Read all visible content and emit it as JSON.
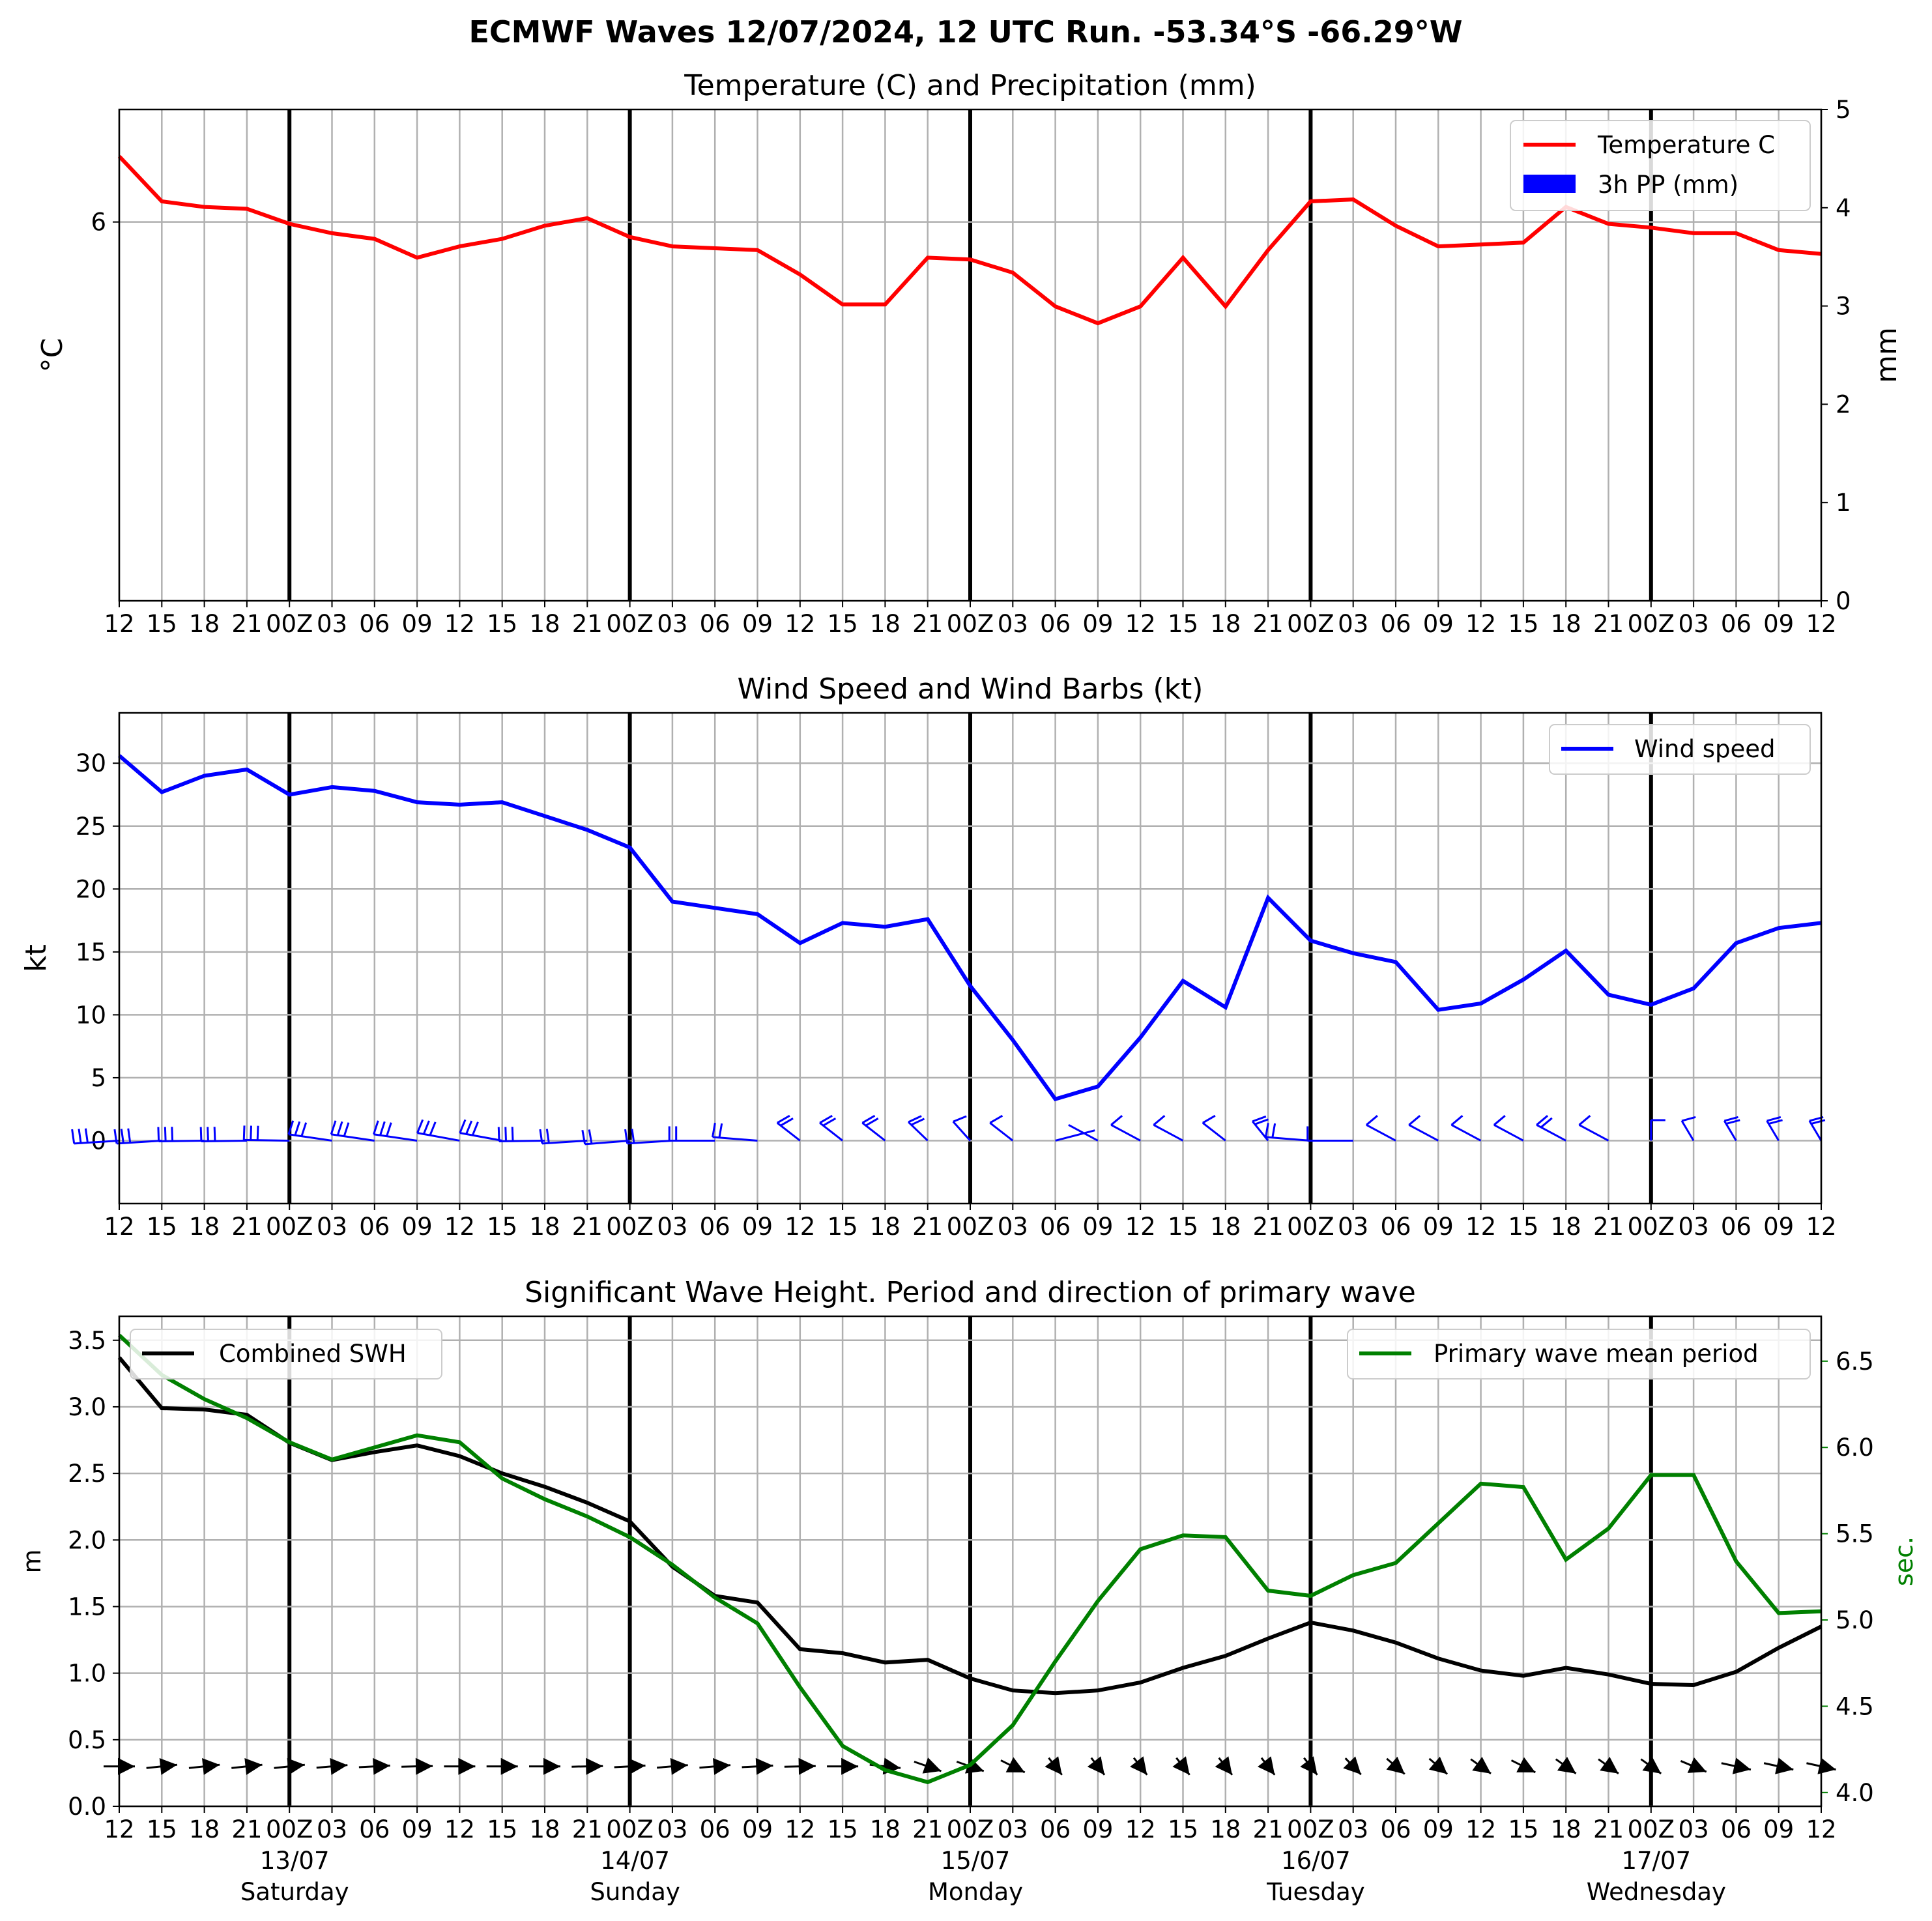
{
  "title": "ECMWF Waves 12/07/2024, 12 UTC Run. -53.34°S -66.29°W",
  "colors": {
    "temperature": "#ff0000",
    "precip": "#0000ff",
    "wind": "#0000ff",
    "swh": "#000000",
    "period": "#008000",
    "grid": "#b0b0b0"
  },
  "x_tick_labels": [
    "12",
    "15",
    "18",
    "21",
    "00Z",
    "03",
    "06",
    "09",
    "12",
    "15",
    "18",
    "21",
    "00Z",
    "03",
    "06",
    "09",
    "12",
    "15",
    "18",
    "21",
    "00Z",
    "03",
    "06",
    "09",
    "12",
    "15",
    "18",
    "21",
    "00Z",
    "03",
    "06",
    "09",
    "12",
    "15",
    "18",
    "21",
    "00Z",
    "03",
    "06",
    "09",
    "12"
  ],
  "day_labels": [
    {
      "date": "13/07",
      "day": "Saturday"
    },
    {
      "date": "14/07",
      "day": "Sunday"
    },
    {
      "date": "15/07",
      "day": "Monday"
    },
    {
      "date": "16/07",
      "day": "Tuesday"
    },
    {
      "date": "17/07",
      "day": "Wednesday"
    }
  ],
  "chart_data": [
    {
      "type": "line",
      "title": "Temperature (C) and Precipitation (mm)",
      "ylabel": "°C",
      "y2label": "mm",
      "y_ticks": [
        "6"
      ],
      "y2_ticks": [
        "0",
        "1",
        "2",
        "3",
        "4",
        "5"
      ],
      "ylim": [
        3.98,
        6.6
      ],
      "y2lim": [
        0,
        5
      ],
      "legend_position": "top-right",
      "series": [
        {
          "name": "Temperature C",
          "values": [
            6.35,
            6.11,
            6.08,
            6.07,
            5.99,
            5.94,
            5.91,
            5.81,
            5.87,
            5.91,
            5.98,
            6.02,
            5.92,
            5.87,
            5.86,
            5.85,
            5.72,
            5.56,
            5.56,
            5.81,
            5.8,
            5.73,
            5.55,
            5.46,
            5.55,
            5.81,
            5.55,
            5.85,
            6.11,
            6.12,
            5.98,
            5.87,
            5.88,
            5.89,
            6.08,
            5.99,
            5.97,
            5.94,
            5.94,
            5.85,
            5.83
          ]
        },
        {
          "name": "3h PP (mm)",
          "values": [
            0,
            0,
            0,
            0,
            0,
            0,
            0,
            0,
            0,
            0,
            0,
            0,
            0,
            0,
            0,
            0,
            0,
            0,
            0,
            0,
            0,
            0,
            0,
            0,
            0,
            0,
            0,
            0,
            0,
            0,
            0,
            0,
            0,
            0,
            0,
            0,
            0,
            0,
            0,
            0,
            0
          ]
        }
      ]
    },
    {
      "type": "line",
      "title": "Wind Speed and Wind Barbs (kt)",
      "ylabel": "kt",
      "y_ticks": [
        "0",
        "5",
        "10",
        "15",
        "20",
        "25",
        "30"
      ],
      "ylim": [
        -5,
        34
      ],
      "legend_position": "top-right",
      "series": [
        {
          "name": "Wind speed",
          "values": [
            30.6,
            27.7,
            29,
            29.5,
            27.5,
            28.1,
            27.8,
            26.9,
            26.7,
            26.9,
            25.8,
            24.7,
            23.3,
            19,
            18.5,
            18,
            15.7,
            17.3,
            17,
            17.6,
            12.3,
            8,
            3.3,
            4.3,
            8.2,
            12.7,
            10.6,
            19.3,
            15.9,
            14.9,
            14.2,
            10.4,
            10.9,
            12.8,
            15.1,
            11.6,
            10.8,
            12.1,
            15.7,
            16.9,
            17.3
          ]
        }
      ],
      "barb_direction_deg": [
        262,
        262,
        268,
        268,
        272,
        288,
        288,
        288,
        292,
        292,
        268,
        262,
        260,
        262,
        270,
        280,
        330,
        330,
        330,
        335,
        338,
        330,
        60,
        320,
        320,
        320,
        330,
        340,
        280,
        270,
        320,
        320,
        320,
        320,
        320,
        320,
        360,
        345,
        345,
        345,
        345
      ]
    },
    {
      "type": "line",
      "title": "Significant Wave Height. Period and direction of primary wave",
      "ylabel": "m",
      "y2label": "sec.",
      "y_ticks": [
        "0.0",
        "0.5",
        "1.0",
        "1.5",
        "2.0",
        "2.5",
        "3.0",
        "3.5"
      ],
      "y2_ticks": [
        "4.0",
        "4.5",
        "5.0",
        "5.5",
        "6.0",
        "6.5"
      ],
      "ylim": [
        0,
        3.68
      ],
      "y2lim": [
        3.92,
        6.76
      ],
      "legend_position": "top-left (SWH), top-right (period)",
      "series": [
        {
          "name": "Combined SWH",
          "axis": "left",
          "values": [
            3.37,
            2.99,
            2.98,
            2.94,
            2.73,
            2.6,
            2.66,
            2.71,
            2.63,
            2.5,
            2.4,
            2.28,
            2.14,
            1.8,
            1.58,
            1.53,
            1.18,
            1.15,
            1.08,
            1.1,
            0.96,
            0.87,
            0.85,
            0.87,
            0.93,
            1.04,
            1.13,
            1.26,
            1.38,
            1.32,
            1.23,
            1.11,
            1.02,
            0.98,
            1.04,
            0.99,
            0.92,
            0.91,
            1.01,
            1.19,
            1.35
          ]
        },
        {
          "name": "Primary wave mean period",
          "axis": "right",
          "values": [
            6.65,
            6.42,
            6.28,
            6.17,
            6.03,
            5.93,
            6.0,
            6.07,
            6.03,
            5.82,
            5.7,
            5.6,
            5.48,
            5.32,
            5.13,
            4.98,
            4.61,
            4.27,
            4.13,
            4.06,
            4.16,
            4.39,
            4.76,
            5.11,
            5.41,
            5.49,
            5.48,
            5.17,
            5.14,
            5.26,
            5.33,
            5.56,
            5.79,
            5.77,
            5.35,
            5.53,
            5.84,
            5.84,
            5.34,
            5.04,
            5.05
          ]
        }
      ],
      "wave_direction_deg": [
        270,
        260,
        260,
        260,
        260,
        262,
        265,
        268,
        270,
        270,
        270,
        268,
        265,
        262,
        262,
        265,
        268,
        270,
        280,
        300,
        300,
        310,
        335,
        335,
        335,
        335,
        335,
        335,
        335,
        330,
        325,
        325,
        320,
        310,
        320,
        320,
        320,
        305,
        290,
        290,
        290
      ]
    }
  ]
}
